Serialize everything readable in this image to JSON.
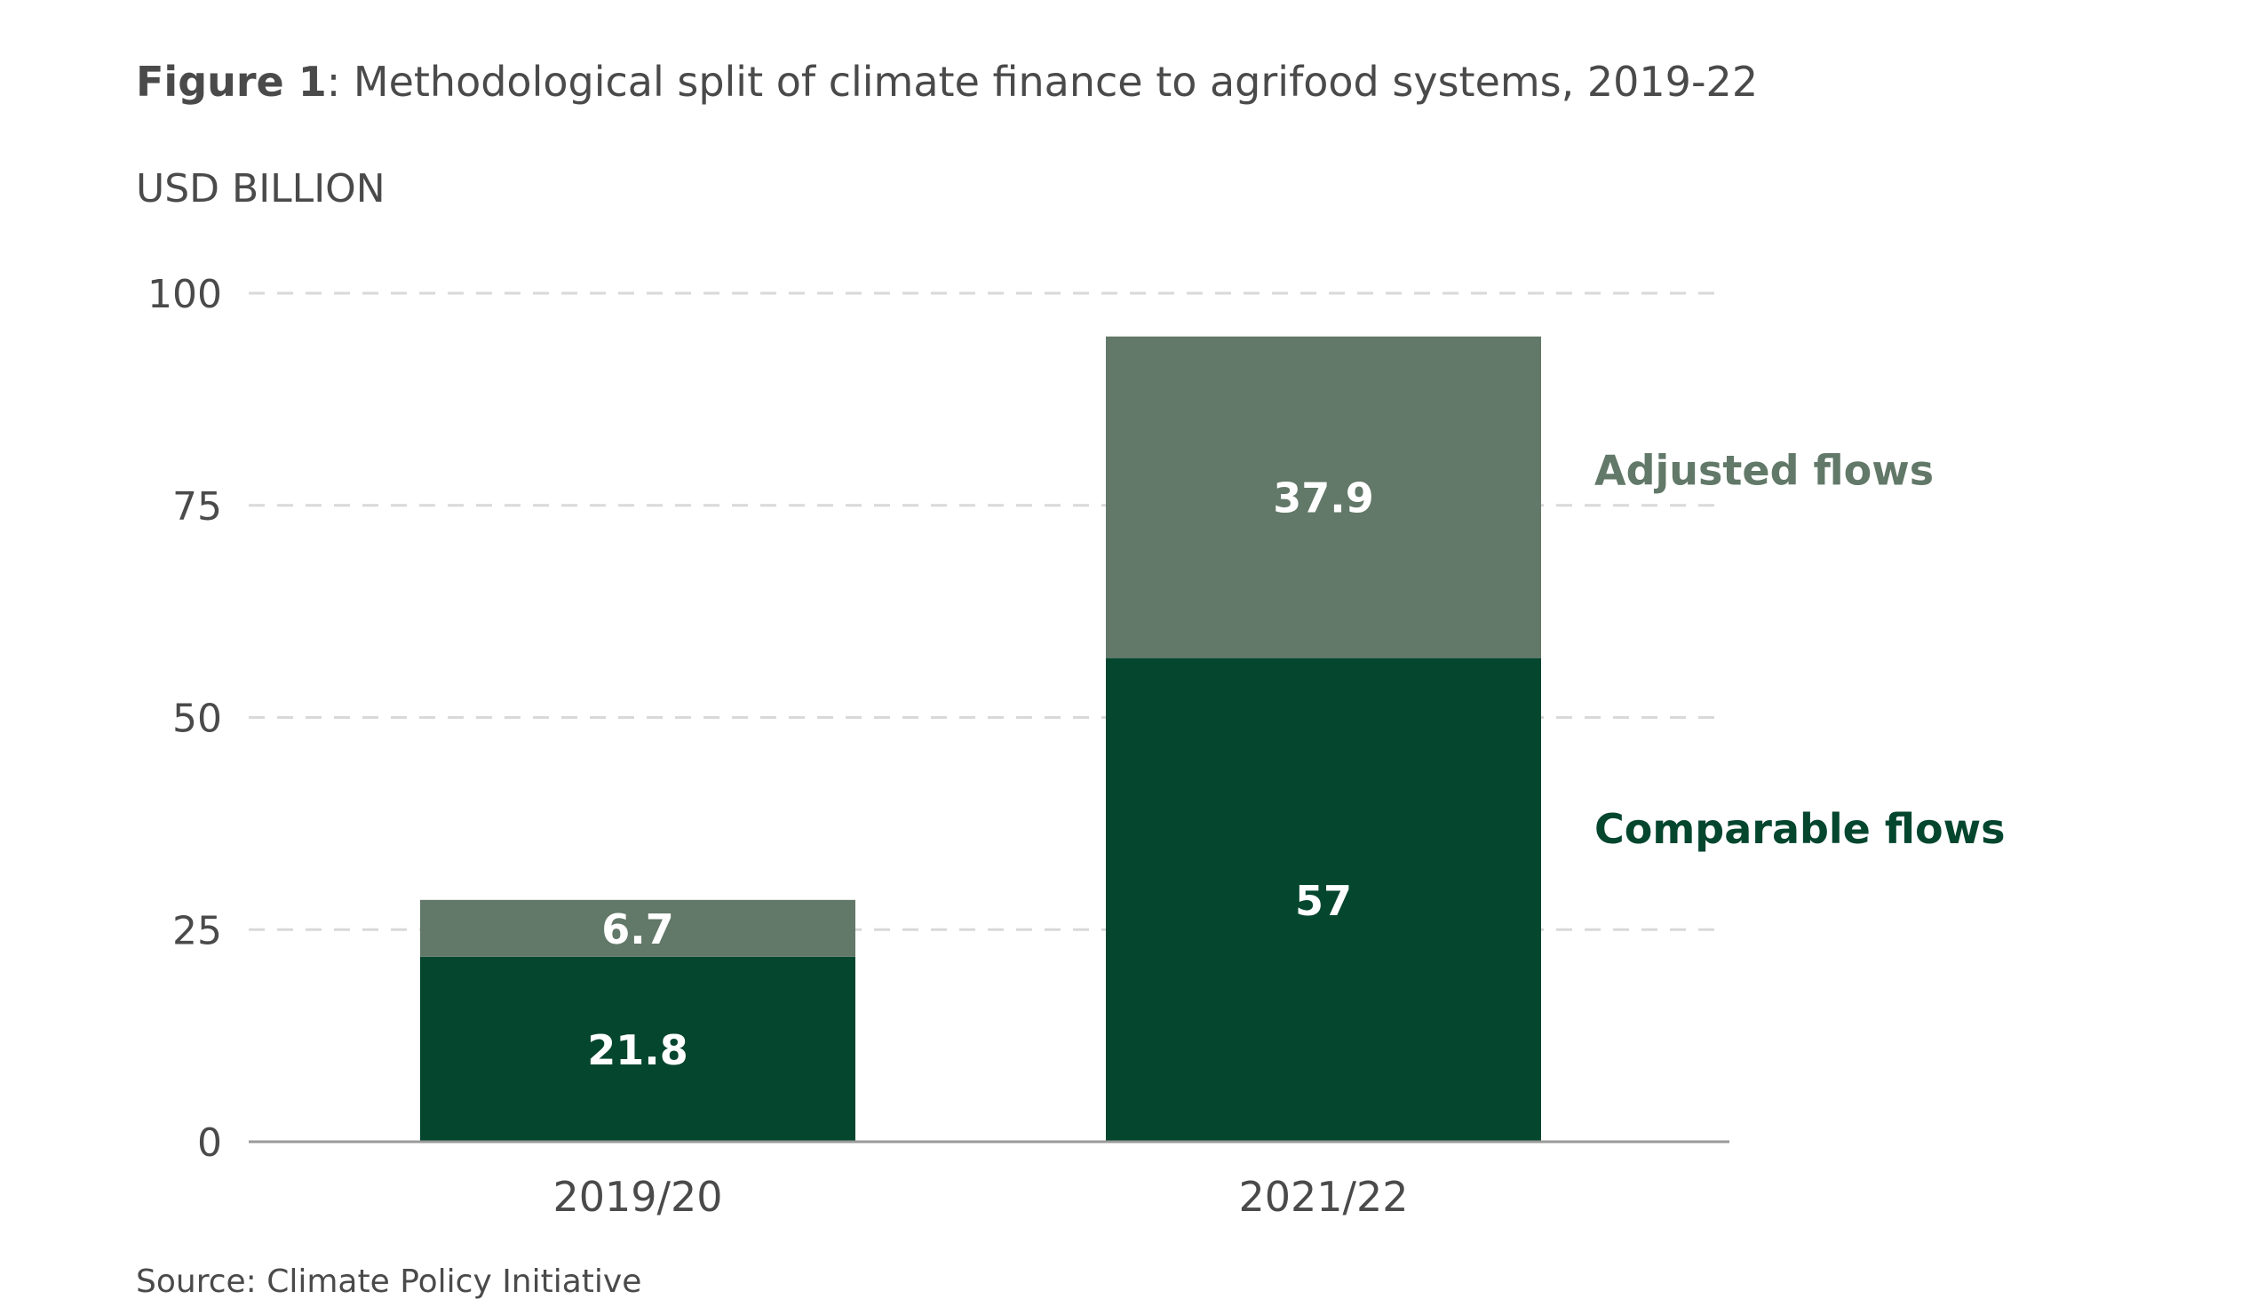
{
  "figure": {
    "title_lead": "Figure 1",
    "title_rest": ": Methodological split of climate finance to agrifood systems, 2019-22",
    "source": "Source: Climate Policy Initiative"
  },
  "colors": {
    "comparable": "#05462f",
    "adjusted": "#627868",
    "grid": "#d9d9d9",
    "axis": "#9a9a9a",
    "text": "#4a4a4a",
    "label_on_bar": "#ffffff"
  },
  "chart_data": {
    "type": "bar",
    "stacked": true,
    "title": "Figure 1: Methodological split of climate finance to agrifood systems, 2019-22",
    "ylabel": "USD BILLION",
    "xlabel": "",
    "categories": [
      "2019/20",
      "2021/22"
    ],
    "series": [
      {
        "name": "Comparable flows",
        "values": [
          21.8,
          57
        ],
        "labels": [
          "21.8",
          "57"
        ]
      },
      {
        "name": "Adjusted flows",
        "values": [
          6.7,
          37.9
        ],
        "labels": [
          "6.7",
          "37.9"
        ]
      }
    ],
    "ylim": [
      0,
      100
    ],
    "yticks": [
      0,
      25,
      50,
      75,
      100
    ],
    "ytick_labels": [
      "0",
      "25",
      "50",
      "75",
      "100"
    ],
    "grid": true,
    "legend": "inline-right"
  }
}
